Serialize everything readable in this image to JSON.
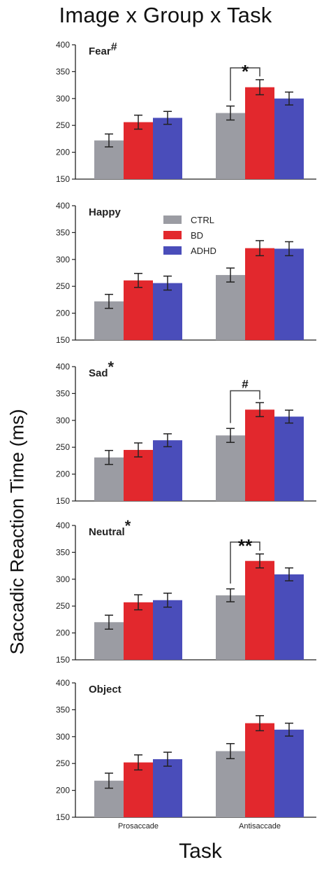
{
  "figure": {
    "title": "Image x Group x Task",
    "ylabel": "Saccadic Reaction Time (ms)",
    "xlabel": "Task"
  },
  "colors": {
    "CTRL": "#9b9ca3",
    "BD": "#e2282d",
    "ADHD": "#4a4dba",
    "axis": "#222222"
  },
  "legend": {
    "placement": "top-center of second panel",
    "entries": [
      "CTRL",
      "BD",
      "ADHD"
    ]
  },
  "chart_data": [
    {
      "type": "bar",
      "panel_label": "Fear",
      "label_mark": "#",
      "categories": [
        "Prosaccade",
        "Antisaccade"
      ],
      "show_category_labels": false,
      "ylim": [
        150,
        400
      ],
      "yticks": [
        "150",
        "200",
        "250",
        "300",
        "350",
        "400"
      ],
      "series": [
        {
          "name": "CTRL",
          "values": [
            222,
            273
          ],
          "errors": [
            12,
            13
          ]
        },
        {
          "name": "BD",
          "values": [
            256,
            321
          ],
          "errors": [
            13,
            14
          ]
        },
        {
          "name": "ADHD",
          "values": [
            264,
            300
          ],
          "errors": [
            12,
            12
          ]
        }
      ],
      "annotation": {
        "text": "*",
        "category_index": 1,
        "from": "CTRL",
        "to": "BD"
      }
    },
    {
      "type": "bar",
      "panel_label": "Happy",
      "label_mark": "",
      "categories": [
        "Prosaccade",
        "Antisaccade"
      ],
      "show_category_labels": false,
      "ylim": [
        150,
        400
      ],
      "yticks": [
        "150",
        "200",
        "250",
        "300",
        "350",
        "400"
      ],
      "series": [
        {
          "name": "CTRL",
          "values": [
            222,
            271
          ],
          "errors": [
            13,
            13
          ]
        },
        {
          "name": "BD",
          "values": [
            261,
            321
          ],
          "errors": [
            13,
            14
          ]
        },
        {
          "name": "ADHD",
          "values": [
            256,
            320
          ],
          "errors": [
            13,
            13
          ]
        }
      ],
      "annotation": null
    },
    {
      "type": "bar",
      "panel_label": "Sad",
      "label_mark": "*",
      "categories": [
        "Prosaccade",
        "Antisaccade"
      ],
      "show_category_labels": false,
      "ylim": [
        150,
        400
      ],
      "yticks": [
        "150",
        "200",
        "250",
        "300",
        "350",
        "400"
      ],
      "series": [
        {
          "name": "CTRL",
          "values": [
            231,
            272
          ],
          "errors": [
            13,
            13
          ]
        },
        {
          "name": "BD",
          "values": [
            245,
            320
          ],
          "errors": [
            13,
            13
          ]
        },
        {
          "name": "ADHD",
          "values": [
            263,
            307
          ],
          "errors": [
            12,
            12
          ]
        }
      ],
      "annotation": {
        "text": "#",
        "category_index": 1,
        "from": "CTRL",
        "to": "BD"
      }
    },
    {
      "type": "bar",
      "panel_label": "Neutral",
      "label_mark": "*",
      "categories": [
        "Prosaccade",
        "Antisaccade"
      ],
      "show_category_labels": false,
      "ylim": [
        150,
        400
      ],
      "yticks": [
        "150",
        "200",
        "250",
        "300",
        "350",
        "400"
      ],
      "series": [
        {
          "name": "CTRL",
          "values": [
            220,
            270
          ],
          "errors": [
            13,
            12
          ]
        },
        {
          "name": "BD",
          "values": [
            257,
            334
          ],
          "errors": [
            14,
            13
          ]
        },
        {
          "name": "ADHD",
          "values": [
            261,
            309
          ],
          "errors": [
            13,
            12
          ]
        }
      ],
      "annotation": {
        "text": "**",
        "category_index": 1,
        "from": "CTRL",
        "to": "BD"
      }
    },
    {
      "type": "bar",
      "panel_label": "Object",
      "label_mark": "",
      "categories": [
        "Prosaccade",
        "Antisaccade"
      ],
      "show_category_labels": true,
      "ylim": [
        150,
        400
      ],
      "yticks": [
        "150",
        "200",
        "250",
        "300",
        "350",
        "400"
      ],
      "series": [
        {
          "name": "CTRL",
          "values": [
            218,
            273
          ],
          "errors": [
            14,
            14
          ]
        },
        {
          "name": "BD",
          "values": [
            252,
            325
          ],
          "errors": [
            14,
            14
          ]
        },
        {
          "name": "ADHD",
          "values": [
            258,
            313
          ],
          "errors": [
            13,
            12
          ]
        }
      ],
      "annotation": null
    }
  ]
}
